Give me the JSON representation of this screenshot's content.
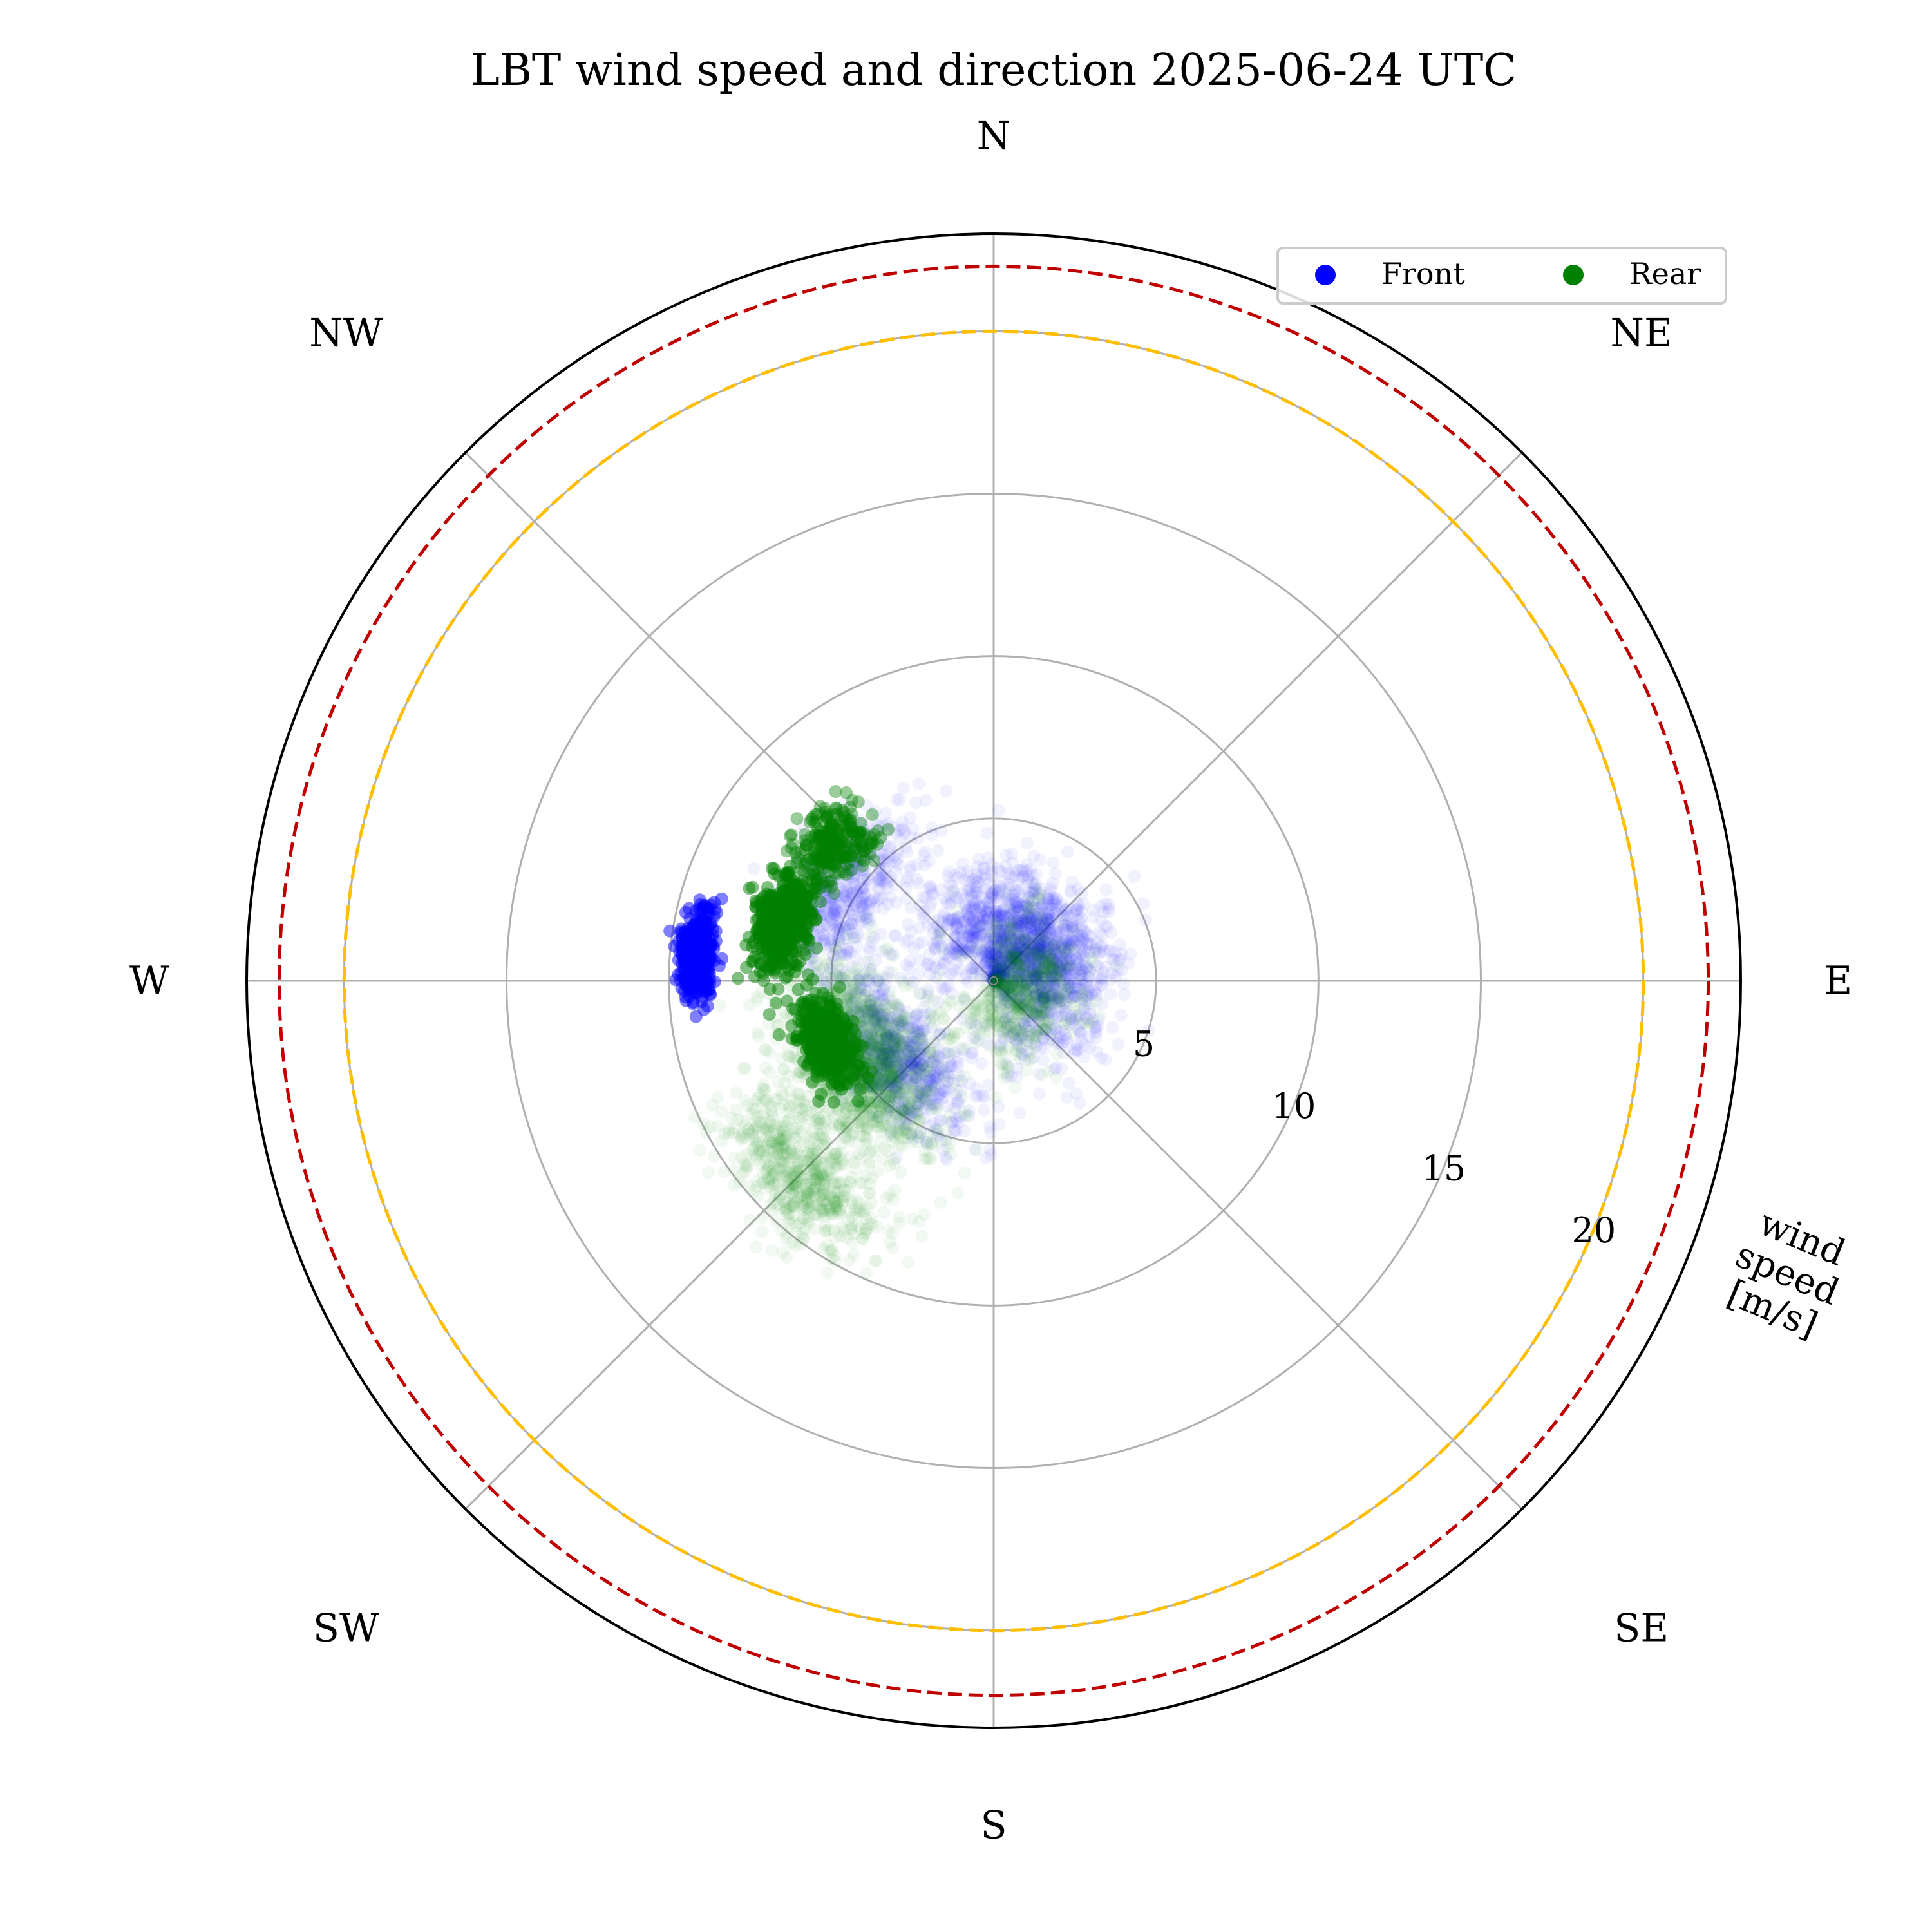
{
  "chart_data": {
    "type": "scatter",
    "projection": "polar",
    "title": "LBT wind speed and direction 2025-06-24 UTC",
    "theta_zero_location": "N",
    "theta_direction": "clockwise",
    "direction_labels": [
      "N",
      "NE",
      "E",
      "SE",
      "S",
      "SW",
      "W",
      "NW"
    ],
    "radial_axis": {
      "label": "wind speed [m/s]",
      "label_lines": [
        "wind",
        "speed",
        "[m/s]"
      ],
      "ticks": [
        5,
        10,
        15,
        20
      ],
      "tick_labels": [
        "5",
        "10",
        "15",
        "20"
      ],
      "gridlines": [
        5,
        10,
        15,
        20
      ],
      "rmax": 23,
      "label_angle_deg": 112.5
    },
    "grid": true,
    "reference_circles": [
      {
        "radius": 20,
        "color": "#ffbf00",
        "style": "dashed"
      },
      {
        "radius": 22,
        "color": "#c00000",
        "style": "dashed"
      }
    ],
    "legend": {
      "placement": "top-right",
      "columns": 2
    },
    "series": [
      {
        "name": "Front",
        "color": "#0000ff",
        "clusters": [
          {
            "direction_center_deg": 45,
            "direction_spread_deg": 120,
            "speed_center": 2,
            "speed_spread": 2.0,
            "count": 1700,
            "alpha": 0.05
          },
          {
            "direction_center_deg": 230,
            "direction_spread_deg": 40,
            "speed_center": 4,
            "speed_spread": 1.5,
            "count": 700,
            "alpha": 0.05
          },
          {
            "direction_center_deg": 300,
            "direction_spread_deg": 30,
            "speed_center": 5.5,
            "speed_spread": 1.5,
            "count": 500,
            "alpha": 0.05
          },
          {
            "direction_center_deg": 275,
            "direction_spread_deg": 8,
            "speed_center": 9.2,
            "speed_spread": 0.5,
            "count": 500,
            "alpha": 0.5
          }
        ],
        "direction_range_deg": [
          0,
          360
        ],
        "speed_range": [
          0,
          11
        ]
      },
      {
        "name": "Rear",
        "color": "#008000",
        "clusters": [
          {
            "direction_center_deg": 240,
            "direction_spread_deg": 35,
            "speed_center": 5,
            "speed_spread": 2.0,
            "count": 1500,
            "alpha": 0.05
          },
          {
            "direction_center_deg": 225,
            "direction_spread_deg": 20,
            "speed_center": 8.5,
            "speed_spread": 1.5,
            "count": 600,
            "alpha": 0.05
          },
          {
            "direction_center_deg": 110,
            "direction_spread_deg": 120,
            "speed_center": 1.5,
            "speed_spread": 1.5,
            "count": 700,
            "alpha": 0.05
          },
          {
            "direction_center_deg": 285,
            "direction_spread_deg": 14,
            "speed_center": 6.8,
            "speed_spread": 0.8,
            "count": 500,
            "alpha": 0.5
          },
          {
            "direction_center_deg": 250,
            "direction_spread_deg": 14,
            "speed_center": 5.5,
            "speed_spread": 0.8,
            "count": 450,
            "alpha": 0.5
          },
          {
            "direction_center_deg": 310,
            "direction_spread_deg": 12,
            "speed_center": 6.5,
            "speed_spread": 1.0,
            "count": 250,
            "alpha": 0.4
          }
        ],
        "direction_range_deg": [
          180,
          340
        ],
        "speed_range": [
          0,
          11
        ]
      }
    ]
  },
  "colors": {
    "background": "#ffffff",
    "grid": "#b0b0b0",
    "frame": "#000000",
    "legend_border": "#cccccc"
  }
}
